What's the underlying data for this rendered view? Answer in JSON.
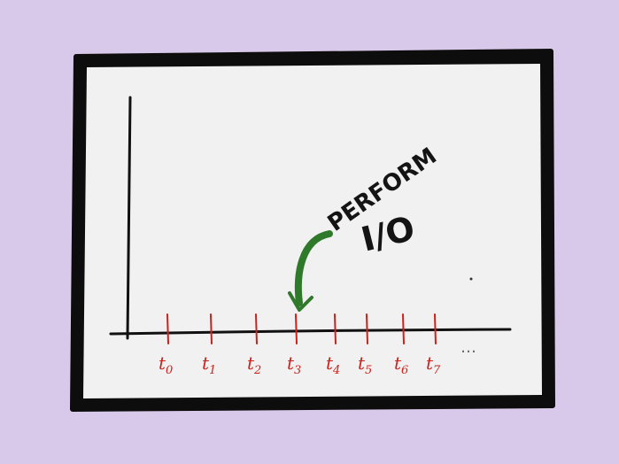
{
  "colors": {
    "background": "#d8c8ea",
    "board_fill": "#f1f1f1",
    "board_frame": "#0d0d0d",
    "axis": "#111111",
    "ticks": "#c9231c",
    "arrow": "#2f7a2a"
  },
  "timeline": {
    "ticks": [
      {
        "base": "t",
        "sub": "0"
      },
      {
        "base": "t",
        "sub": "1"
      },
      {
        "base": "t",
        "sub": "2"
      },
      {
        "base": "t",
        "sub": "3"
      },
      {
        "base": "t",
        "sub": "4"
      },
      {
        "base": "t",
        "sub": "5"
      },
      {
        "base": "t",
        "sub": "6"
      },
      {
        "base": "t",
        "sub": "7"
      }
    ],
    "ellipsis": "…"
  },
  "annotation": {
    "line1": "PERFORM",
    "line2": "I/O",
    "target_tick": 3
  }
}
